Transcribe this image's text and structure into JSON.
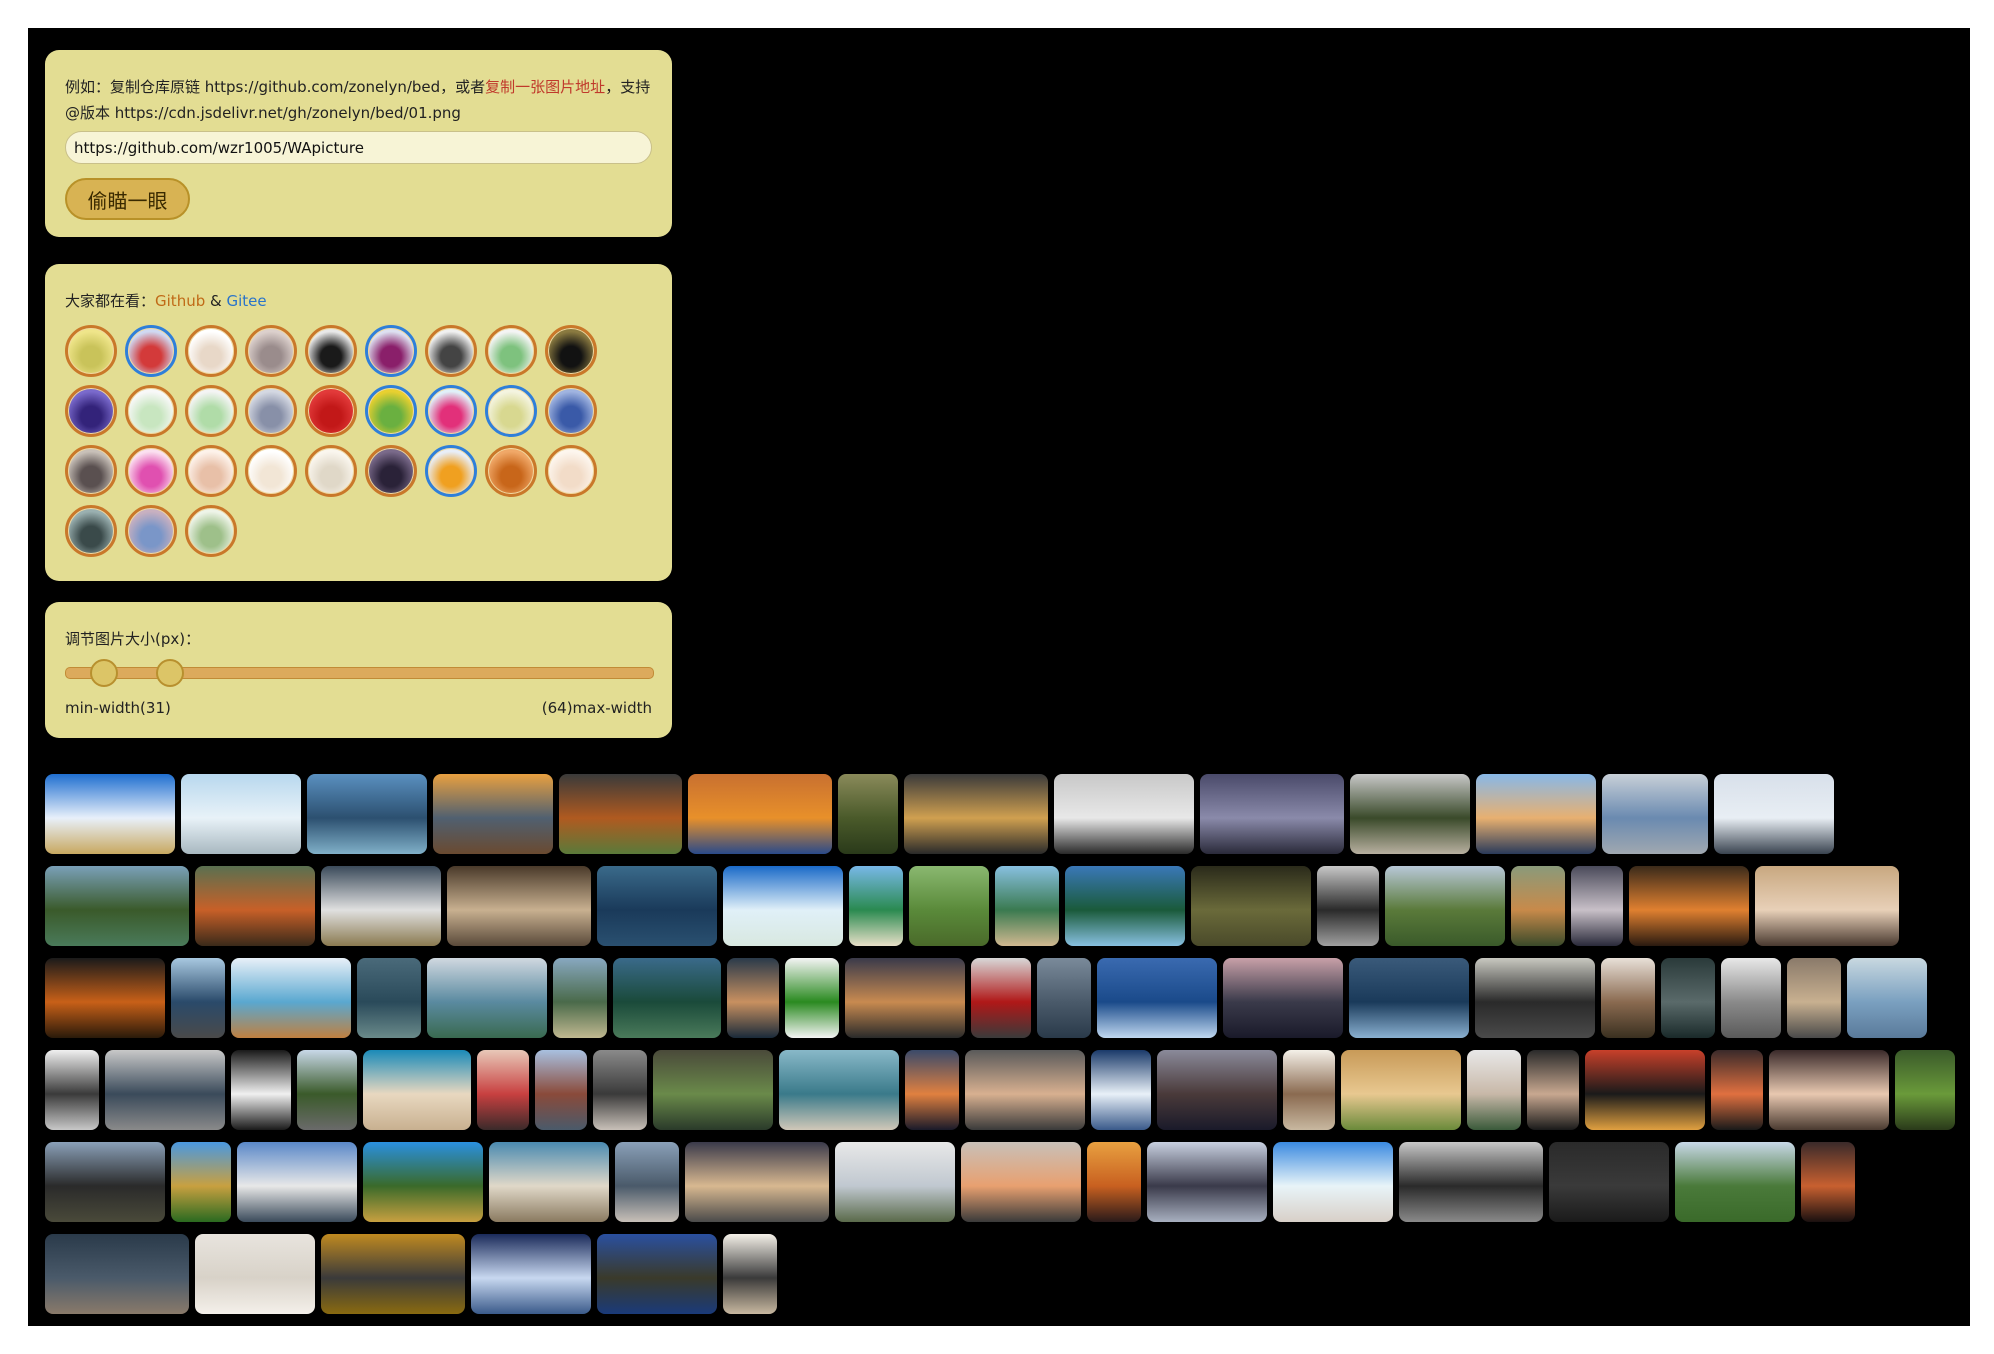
{
  "source": {
    "hint_prefix": "例如：复制仓库原链 https://github.com/zonelyn/bed，或者",
    "hint_link": "复制一张图片地址",
    "hint_suffix": "，支持@版本 https://cdn.jsdelivr.net/gh/zonelyn/bed/01.png",
    "url_value": "https://github.com/wzr1005/WApicture",
    "peek_button": "偷瞄一眼"
  },
  "popular": {
    "label": "大家都在看：",
    "github": "Github",
    "and": " & ",
    "gitee": "Gitee"
  },
  "sizer": {
    "label": "调节图片大小(px)：",
    "min_label": "min-width(31)",
    "max_label": "(64)max-width",
    "min": 31,
    "max": 64
  },
  "colors": {
    "panel": "#e3dd93",
    "accent_red": "#c0392b",
    "github_orange": "#c06a17",
    "gitee_blue": "#2a74c9"
  }
}
